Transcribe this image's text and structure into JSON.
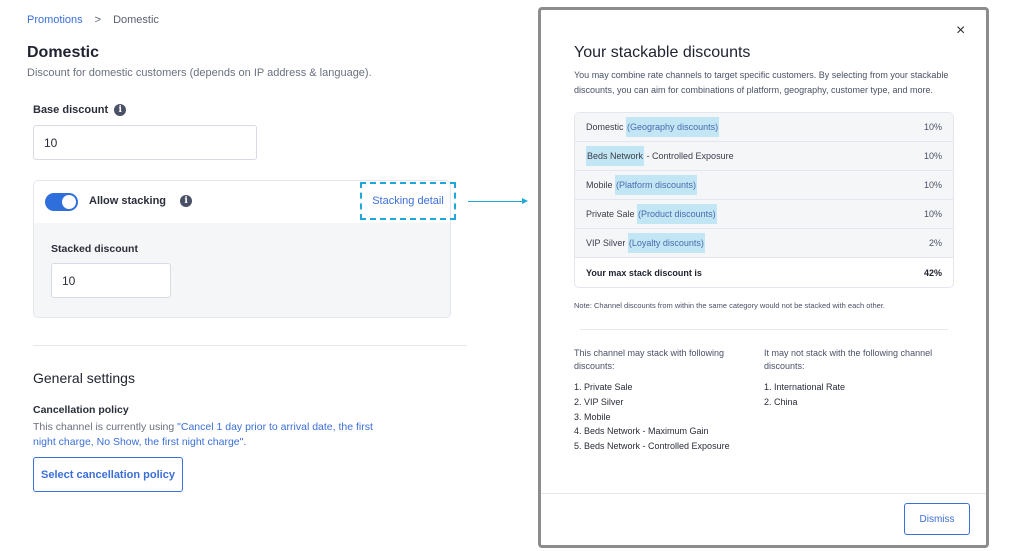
{
  "breadcrumb": {
    "parent": "Promotions",
    "separator": ">",
    "current": "Domestic"
  },
  "page": {
    "title": "Domestic",
    "subtitle": "Discount for domestic customers (depends on IP address & language)."
  },
  "base_discount": {
    "label": "Base discount",
    "value": "10",
    "info_icon": "info-icon"
  },
  "stacking": {
    "toggle_label": "Allow stacking",
    "enabled": true,
    "detail_link": "Stacking detail",
    "stacked_label": "Stacked discount",
    "stacked_value": "10"
  },
  "general": {
    "title": "General settings",
    "policy_label": "Cancellation policy",
    "policy_prefix": "This channel is currently using ",
    "policy_value": "\"Cancel 1 day prior to arrival date, the first night charge, No Show, the first night charge\".",
    "select_button": "Select cancellation policy"
  },
  "modal": {
    "title": "Your stackable discounts",
    "description": "You may combine rate channels to target specific customers. By selecting from your stackable discounts, you can aim for combinations of platform, geography, customer type, and more.",
    "rows": [
      {
        "name": "Domestic",
        "category": "(Geography discounts)",
        "value": "10%"
      },
      {
        "name": "Beds Network",
        "suffix": " - Controlled Exposure",
        "value": "10%"
      },
      {
        "name": "Mobile",
        "category": "(Platform discounts)",
        "value": "10%"
      },
      {
        "name": "Private Sale",
        "category": "(Product discounts)",
        "value": "10%"
      },
      {
        "name": "VIP Silver",
        "category": "(Loyalty discounts)",
        "value": "2%"
      }
    ],
    "total_label": "Your max stack discount is",
    "total_value": "42%",
    "note": "Note: Channel discounts from within the same category would not be stacked with each other.",
    "may_stack_header": "This channel may stack with following discounts:",
    "may_stack": [
      "1. Private Sale",
      "2. VIP Silver",
      "3. Mobile",
      "4. Beds Network - Maximum Gain",
      "5. Beds Network - Controlled Exposure"
    ],
    "may_not_header": "It may not stack with the following channel discounts:",
    "may_not": [
      "1. International Rate",
      "2. China"
    ],
    "dismiss": "Dismiss",
    "close_icon": "×"
  },
  "colors": {
    "accent": "#3a6fd8",
    "toggle": "#2f6fdc",
    "highlight": "#c2e6f3",
    "annotation": "#1ea7d8"
  }
}
